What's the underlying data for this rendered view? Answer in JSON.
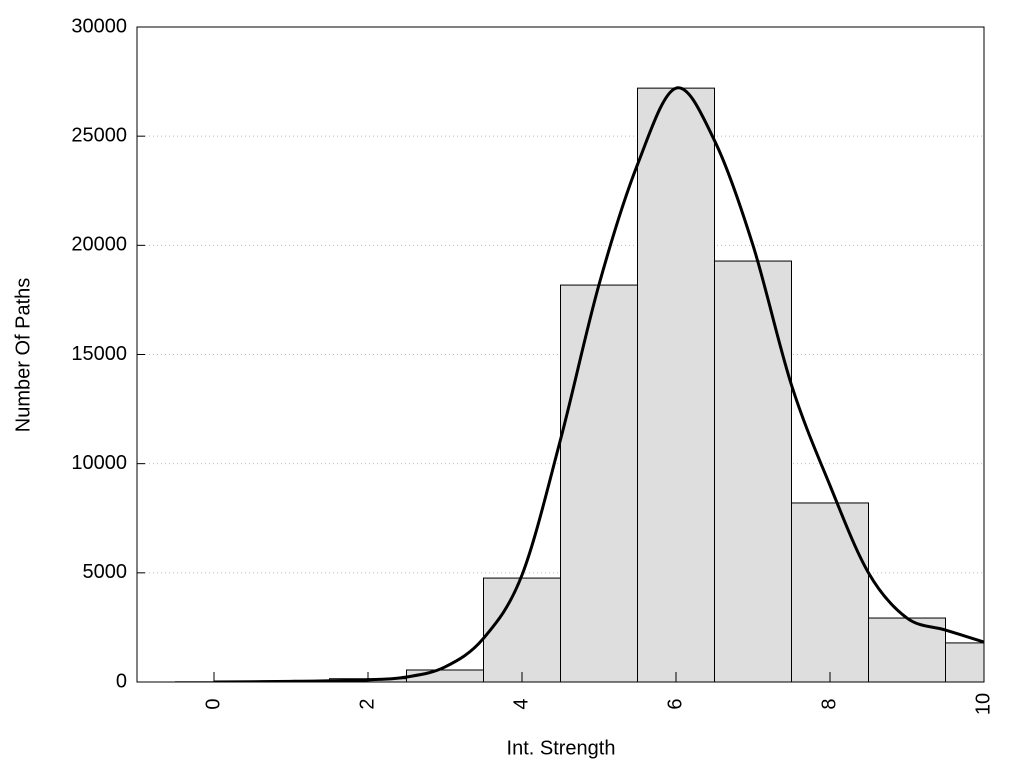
{
  "chart_data": {
    "type": "histogram",
    "bins": [
      -0.5,
      0.5,
      1.5,
      2.5,
      3.5,
      4.5,
      5.5,
      6.5,
      7.5,
      8.5,
      9.5,
      10.5
    ],
    "values": [
      10,
      30,
      150,
      550,
      4760,
      18180,
      27200,
      19280,
      8200,
      2930,
      1790
    ],
    "color": "#dedede",
    "curve": {
      "x": [
        0,
        1,
        2,
        2.5,
        3,
        3.5,
        4,
        4.5,
        5,
        5.5,
        6,
        6.5,
        7,
        7.5,
        8,
        8.5,
        9,
        9.5,
        10
      ],
      "values": [
        0,
        30,
        100,
        230,
        690,
        2000,
        4900,
        11100,
        18200,
        23700,
        27200,
        24800,
        20000,
        13600,
        9000,
        5000,
        2930,
        2380,
        1830
      ],
      "color": "#000000"
    },
    "xlabel": "Int. Strength",
    "ylabel": "Number Of Paths",
    "xlim": [
      -1,
      10
    ],
    "ylim": [
      0,
      30000
    ],
    "xticks": [
      0,
      2,
      4,
      6,
      8,
      10
    ],
    "yticks": [
      0,
      5000,
      10000,
      15000,
      20000,
      25000,
      30000
    ],
    "grid": true
  }
}
